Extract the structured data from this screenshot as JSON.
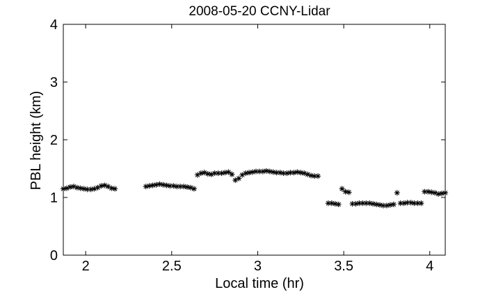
{
  "chart_data": {
    "type": "scatter",
    "title": "2008-05-20 CCNY-Lidar",
    "xlabel": "Local time (hr)",
    "ylabel": "PBL height (km)",
    "xlim": [
      1.87,
      4.09
    ],
    "ylim": [
      0,
      4
    ],
    "xticks": [
      2,
      2.5,
      3,
      3.5,
      4
    ],
    "xtick_labels": [
      "2",
      "2.5",
      "3",
      "3.5",
      "4"
    ],
    "yticks": [
      0,
      1,
      2,
      3,
      4
    ],
    "ytick_labels": [
      "0",
      "1",
      "2",
      "3",
      "4"
    ],
    "grid": false,
    "marker": "*",
    "marker_color": "#000000",
    "series": [
      {
        "x": [
          1.87,
          1.89,
          1.91,
          1.93,
          1.95,
          1.97,
          1.99,
          2.01,
          2.03,
          2.05,
          2.07,
          2.09,
          2.11,
          2.13,
          2.15,
          2.17,
          2.35,
          2.37,
          2.39,
          2.41,
          2.43,
          2.45,
          2.47,
          2.49,
          2.51,
          2.53,
          2.55,
          2.57,
          2.59,
          2.61,
          2.63,
          2.65,
          2.67,
          2.69,
          2.71,
          2.73,
          2.75,
          2.77,
          2.79,
          2.81,
          2.83,
          2.85,
          2.87,
          2.89,
          2.91,
          2.93,
          2.95,
          2.97,
          2.99,
          3.01,
          3.03,
          3.05,
          3.07,
          3.09,
          3.11,
          3.13,
          3.15,
          3.17,
          3.19,
          3.21,
          3.23,
          3.25,
          3.27,
          3.29,
          3.31,
          3.33,
          3.35,
          3.41,
          3.43,
          3.45,
          3.47,
          3.49,
          3.51,
          3.53,
          3.55,
          3.57,
          3.59,
          3.61,
          3.63,
          3.65,
          3.67,
          3.69,
          3.71,
          3.73,
          3.75,
          3.77,
          3.79,
          3.81,
          3.83,
          3.85,
          3.87,
          3.89,
          3.91,
          3.93,
          3.95,
          3.97,
          3.99,
          4.01,
          4.03,
          4.05,
          4.07,
          4.09
        ],
        "y": [
          1.15,
          1.16,
          1.18,
          1.19,
          1.17,
          1.16,
          1.15,
          1.14,
          1.14,
          1.15,
          1.17,
          1.2,
          1.21,
          1.19,
          1.16,
          1.15,
          1.19,
          1.2,
          1.21,
          1.22,
          1.23,
          1.22,
          1.21,
          1.2,
          1.2,
          1.19,
          1.19,
          1.19,
          1.18,
          1.17,
          1.15,
          1.39,
          1.42,
          1.43,
          1.41,
          1.4,
          1.42,
          1.42,
          1.42,
          1.43,
          1.44,
          1.4,
          1.3,
          1.33,
          1.39,
          1.42,
          1.43,
          1.44,
          1.45,
          1.45,
          1.45,
          1.46,
          1.45,
          1.44,
          1.43,
          1.43,
          1.42,
          1.42,
          1.43,
          1.43,
          1.44,
          1.43,
          1.42,
          1.4,
          1.38,
          1.37,
          1.37,
          0.9,
          0.9,
          0.89,
          0.88,
          1.15,
          1.1,
          1.09,
          0.89,
          0.89,
          0.9,
          0.9,
          0.9,
          0.9,
          0.89,
          0.88,
          0.87,
          0.86,
          0.86,
          0.87,
          0.88,
          1.08,
          0.9,
          0.9,
          0.91,
          0.91,
          0.9,
          0.9,
          0.9,
          1.1,
          1.1,
          1.09,
          1.08,
          1.06,
          1.07,
          1.08
        ]
      }
    ]
  }
}
